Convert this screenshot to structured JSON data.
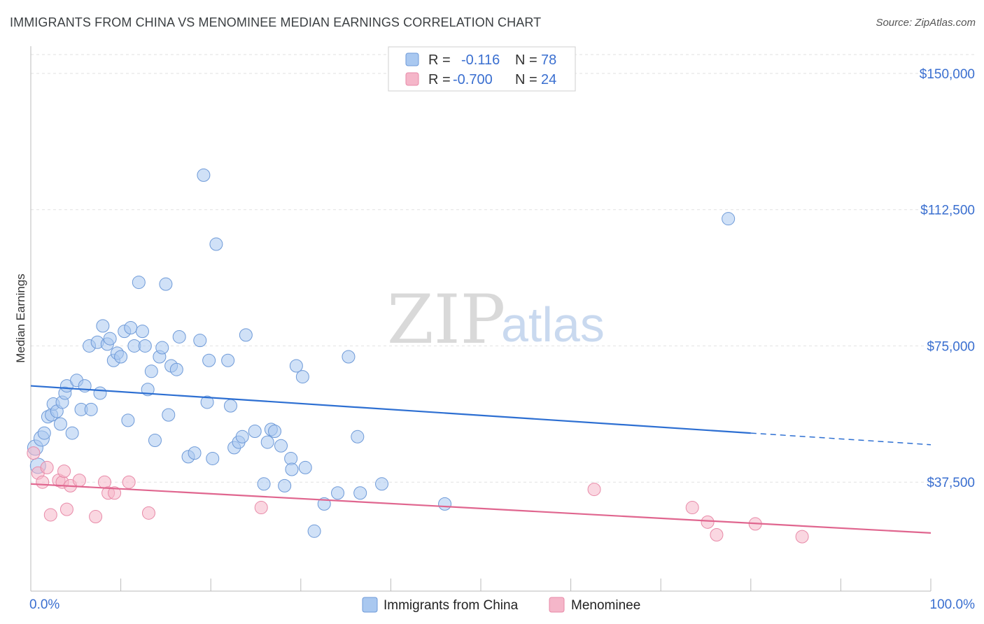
{
  "header": {
    "title": "IMMIGRANTS FROM CHINA VS MENOMINEE MEDIAN EARNINGS CORRELATION CHART",
    "source": "Source: ZipAtlas.com"
  },
  "watermark": {
    "zip": "ZIP",
    "atlas": "atlas"
  },
  "legend": {
    "rows": [
      {
        "r_label": "R =",
        "r_value": "-0.116",
        "n_label": "N =",
        "n_value": "78",
        "color": "#a9c8f0"
      },
      {
        "r_label": "R =",
        "r_value": "-0.700",
        "n_label": "N =",
        "n_value": "24",
        "color": "#f5b6c9"
      }
    ]
  },
  "bottom_legend": [
    {
      "label": "Immigrants from China",
      "color": "#a9c8f0"
    },
    {
      "label": "Menominee",
      "color": "#f5b6c9"
    }
  ],
  "chart_data": {
    "type": "scatter",
    "title": "IMMIGRANTS FROM CHINA VS MENOMINEE MEDIAN EARNINGS CORRELATION CHART",
    "xlabel": "",
    "ylabel": "Median Earnings",
    "xlim": [
      0,
      100
    ],
    "ylim": [
      7500,
      157500
    ],
    "x_tick_labels": [
      "0.0%",
      "100.0%"
    ],
    "y_ticks": [
      {
        "value": 37500,
        "label": "$37,500"
      },
      {
        "value": 75000,
        "label": "$75,000"
      },
      {
        "value": 112500,
        "label": "$112,500"
      },
      {
        "value": 150000,
        "label": "$150,000"
      }
    ],
    "grid": "horizontal dashed",
    "legend_position": "top-center",
    "series": [
      {
        "name": "Immigrants from China",
        "color": "#a9c8f0",
        "stroke": "#6e9ad8",
        "trend": {
          "x0": 0,
          "y0": 64000,
          "x1": 80,
          "y1": 51000,
          "dash_x1": 100,
          "dash_y1": 47800,
          "color": "#2d6fd2"
        },
        "points": [
          [
            0.5,
            47000
          ],
          [
            1.2,
            49500
          ],
          [
            1.5,
            51000
          ],
          [
            1.9,
            55500
          ],
          [
            2.3,
            56000
          ],
          [
            2.5,
            59000
          ],
          [
            2.9,
            57000
          ],
          [
            3.3,
            53500
          ],
          [
            3.5,
            59500
          ],
          [
            3.8,
            62000
          ],
          [
            4.0,
            64000
          ],
          [
            4.6,
            51000
          ],
          [
            5.1,
            65500
          ],
          [
            5.6,
            57500
          ],
          [
            6.0,
            64000
          ],
          [
            6.7,
            57500
          ],
          [
            6.5,
            75000
          ],
          [
            7.4,
            76000
          ],
          [
            7.7,
            62000
          ],
          [
            8.0,
            80500
          ],
          [
            8.5,
            75500
          ],
          [
            8.8,
            77000
          ],
          [
            9.2,
            71000
          ],
          [
            9.6,
            73000
          ],
          [
            10.0,
            72000
          ],
          [
            10.4,
            79000
          ],
          [
            10.8,
            54500
          ],
          [
            11.1,
            80000
          ],
          [
            11.5,
            75000
          ],
          [
            12.0,
            92500
          ],
          [
            12.4,
            79000
          ],
          [
            12.7,
            75000
          ],
          [
            13.0,
            63000
          ],
          [
            13.4,
            68000
          ],
          [
            13.8,
            49000
          ],
          [
            14.3,
            72000
          ],
          [
            14.6,
            74500
          ],
          [
            15.0,
            92000
          ],
          [
            15.3,
            56000
          ],
          [
            15.6,
            69500
          ],
          [
            16.2,
            68500
          ],
          [
            16.5,
            77500
          ],
          [
            17.5,
            44500
          ],
          [
            18.2,
            45500
          ],
          [
            18.8,
            76500
          ],
          [
            19.2,
            122000
          ],
          [
            19.6,
            59500
          ],
          [
            19.8,
            71000
          ],
          [
            20.2,
            44000
          ],
          [
            20.6,
            103000
          ],
          [
            21.9,
            71000
          ],
          [
            22.2,
            58500
          ],
          [
            22.6,
            47000
          ],
          [
            23.1,
            48500
          ],
          [
            23.5,
            50000
          ],
          [
            23.9,
            78000
          ],
          [
            24.9,
            51500
          ],
          [
            25.9,
            37000
          ],
          [
            26.3,
            48500
          ],
          [
            26.7,
            52000
          ],
          [
            27.1,
            51500
          ],
          [
            27.8,
            47500
          ],
          [
            28.2,
            36500
          ],
          [
            28.9,
            44000
          ],
          [
            29.0,
            41000
          ],
          [
            29.5,
            69500
          ],
          [
            30.2,
            66500
          ],
          [
            30.5,
            41500
          ],
          [
            31.5,
            24000
          ],
          [
            32.6,
            31500
          ],
          [
            34.1,
            34500
          ],
          [
            35.3,
            72000
          ],
          [
            36.3,
            50000
          ],
          [
            36.6,
            34500
          ],
          [
            39.0,
            37000
          ],
          [
            46.0,
            31500
          ],
          [
            77.5,
            110000
          ],
          [
            0.8,
            42000
          ]
        ]
      },
      {
        "name": "Menominee",
        "color": "#f5b6c9",
        "stroke": "#e88aa8",
        "trend": {
          "x0": 0,
          "y0": 37000,
          "x1": 100,
          "y1": 23500,
          "color": "#e0668f"
        },
        "points": [
          [
            0.3,
            45500
          ],
          [
            0.8,
            40000
          ],
          [
            1.3,
            37500
          ],
          [
            1.8,
            41500
          ],
          [
            2.2,
            28500
          ],
          [
            3.1,
            38000
          ],
          [
            3.5,
            37500
          ],
          [
            3.7,
            40500
          ],
          [
            4.0,
            30000
          ],
          [
            4.4,
            36500
          ],
          [
            5.4,
            38000
          ],
          [
            7.2,
            28000
          ],
          [
            8.2,
            37500
          ],
          [
            8.6,
            34500
          ],
          [
            9.3,
            34500
          ],
          [
            10.9,
            37500
          ],
          [
            13.1,
            29000
          ],
          [
            25.6,
            30500
          ],
          [
            62.6,
            35500
          ],
          [
            73.5,
            30500
          ],
          [
            75.2,
            26500
          ],
          [
            76.2,
            23000
          ],
          [
            80.5,
            26000
          ],
          [
            85.7,
            22500
          ]
        ]
      }
    ]
  }
}
